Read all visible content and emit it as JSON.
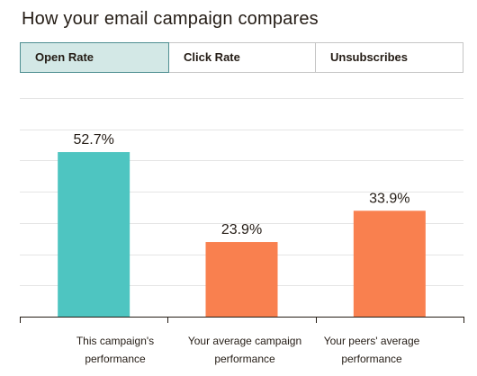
{
  "header": {
    "title": "How your email campaign compares"
  },
  "tabs": [
    {
      "label": "Open Rate",
      "active": true
    },
    {
      "label": "Click Rate",
      "active": false
    },
    {
      "label": "Unsubscribes",
      "active": false
    }
  ],
  "colors": {
    "current_campaign": "#4ec5c1",
    "comparison": "#f9804f",
    "gridline": "#e5e5e5",
    "axis": "#241c15",
    "active_tab_bg": "#d3e8e6",
    "active_tab_border": "#4f8f91"
  },
  "chart_data": {
    "type": "bar",
    "categories": [
      [
        "This campaign's",
        "performance"
      ],
      [
        "Your average campaign",
        "performance"
      ],
      [
        "Your peers' average",
        "performance"
      ]
    ],
    "values": [
      52.7,
      23.9,
      33.9
    ],
    "value_labels": [
      "52.7%",
      "23.9%",
      "33.9%"
    ],
    "ylim": [
      0,
      70
    ],
    "grid": true,
    "y_tick_labels_shown": false
  }
}
